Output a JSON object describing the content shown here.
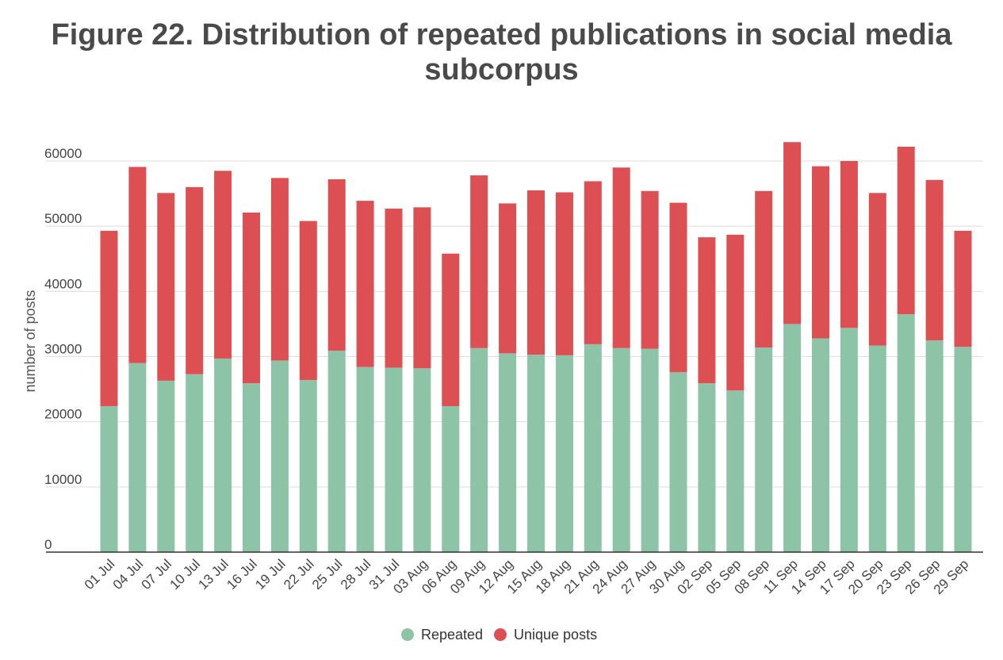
{
  "chart_data": {
    "type": "bar",
    "stacked": true,
    "title_lines": [
      "Figure 22. Distribution of repeated publications in social media",
      "subcorpus"
    ],
    "ylabel": "number of posts",
    "xlabel": "",
    "ylim": [
      0,
      60000
    ],
    "yticks": [
      0,
      10000,
      20000,
      30000,
      40000,
      50000,
      60000
    ],
    "grid": true,
    "legend_position": "bottom-center",
    "colors": {
      "repeated": "#8dc3a7",
      "unique": "#dc5053"
    },
    "categories": [
      "01 Jul",
      "04 Jul",
      "07 Jul",
      "10 Jul",
      "13 Jul",
      "16 Jul",
      "19 Jul",
      "22 Jul",
      "25 Jul",
      "28 Jul",
      "31 Jul",
      "03 Aug",
      "06 Aug",
      "09 Aug",
      "12 Aug",
      "15 Aug",
      "18 Aug",
      "21 Aug",
      "24 Aug",
      "27 Aug",
      "30 Aug",
      "02 Sep",
      "05 Sep",
      "08 Sep",
      "11 Sep",
      "14 Sep",
      "17 Sep",
      "20 Sep",
      "23 Sep",
      "26 Sep",
      "29 Sep"
    ],
    "series": [
      {
        "name": "Repeated",
        "values": [
          22400,
          29000,
          26300,
          27300,
          29700,
          25900,
          29400,
          26400,
          30900,
          28400,
          28300,
          28200,
          22400,
          31300,
          30500,
          30300,
          30200,
          31900,
          31300,
          31200,
          27600,
          25900,
          24800,
          31400,
          35000,
          32800,
          34400,
          31700,
          36500,
          32500,
          31500
        ]
      },
      {
        "name": "Unique posts",
        "values": [
          26900,
          30100,
          28800,
          28700,
          28800,
          26200,
          28000,
          24400,
          26300,
          25500,
          24400,
          24700,
          23400,
          26500,
          23000,
          25200,
          25000,
          25000,
          27700,
          24200,
          26000,
          22400,
          23900,
          24000,
          27900,
          26400,
          25600,
          23400,
          25700,
          24600,
          17800
        ]
      }
    ]
  }
}
